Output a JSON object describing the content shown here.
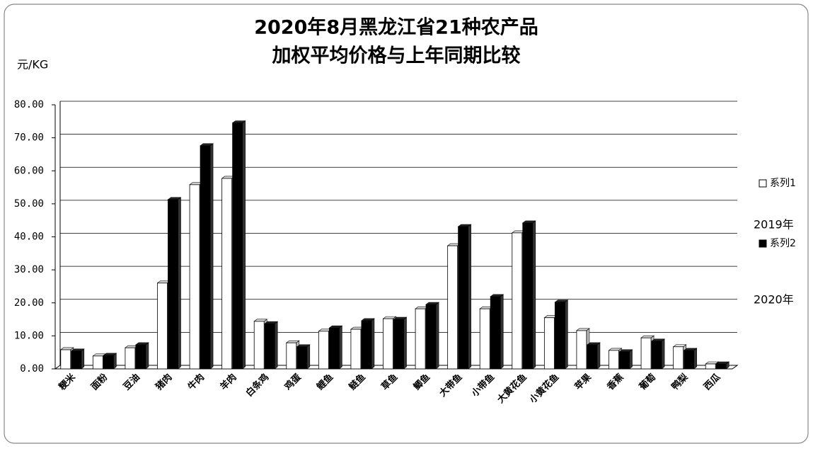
{
  "chart_data": {
    "type": "bar",
    "title": "2020年8月黑龙江省21种农产品",
    "subtitle": "加权平均价格与上年同期比较",
    "y_label": "元/KG",
    "annotations": [
      "2019年",
      "2020年"
    ],
    "categories": [
      "粳米",
      "面粉",
      "豆油",
      "猪肉",
      "牛肉",
      "羊肉",
      "白条鸡",
      "鸡蛋",
      "鲤鱼",
      "鲢鱼",
      "草鱼",
      "鲫鱼",
      "大带鱼",
      "小带鱼",
      "大黄花鱼",
      "小黄花鱼",
      "苹果",
      "香蕉",
      "葡萄",
      "鸭梨",
      "西瓜"
    ],
    "series": [
      {
        "name": "系列1",
        "color": "#ffffff",
        "values": [
          5.8,
          3.9,
          6.4,
          26.0,
          55.8,
          57.7,
          14.4,
          7.9,
          11.4,
          12.0,
          15.2,
          18.2,
          37.3,
          18.2,
          41.2,
          15.5,
          11.6,
          5.6,
          9.4,
          6.7,
          1.5
        ]
      },
      {
        "name": "系列2",
        "color": "#000000",
        "values": [
          5.4,
          4.1,
          7.3,
          51.3,
          67.6,
          74.5,
          13.7,
          6.7,
          12.4,
          14.6,
          15.0,
          19.5,
          43.1,
          21.9,
          44.2,
          20.2,
          7.3,
          5.2,
          8.4,
          5.6,
          1.5
        ]
      }
    ],
    "ylim": [
      0,
      80
    ],
    "yticks": [
      {
        "value": 0,
        "label": "0.00"
      },
      {
        "value": 10,
        "label": "10.00"
      },
      {
        "value": 20,
        "label": "20.00"
      },
      {
        "value": 30,
        "label": "30.00"
      },
      {
        "value": 40,
        "label": "40.00"
      },
      {
        "value": 50,
        "label": "50.00"
      },
      {
        "value": 60,
        "label": "60.00"
      },
      {
        "value": 70,
        "label": "70.00"
      },
      {
        "value": 80,
        "label": "80.00"
      }
    ],
    "grid": true
  }
}
